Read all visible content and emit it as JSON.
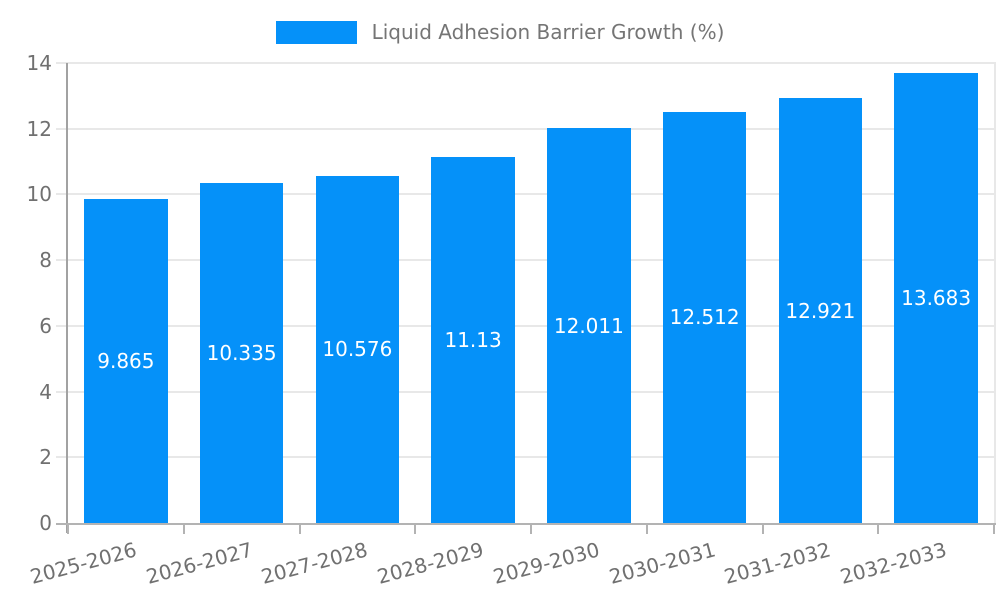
{
  "chart_data": {
    "type": "bar",
    "title": "Liquid Adhesion Barrier Growth (%)",
    "legend_entries": [
      "Liquid Adhesion Barrier Growth (%)"
    ],
    "legend_position": "top-center",
    "categories": [
      "2025-2026",
      "2026-2027",
      "2027-2028",
      "2028-2029",
      "2029-2030",
      "2030-2031",
      "2031-2032",
      "2032-2033"
    ],
    "values": [
      9.865,
      10.335,
      10.576,
      11.13,
      12.011,
      12.512,
      12.921,
      13.683
    ],
    "value_labels": [
      "9.865",
      "10.335",
      "10.576",
      "11.13",
      "12.011",
      "12.512",
      "12.921",
      "13.683"
    ],
    "xlabel": "",
    "ylabel": "",
    "ylim": [
      0,
      14
    ],
    "yticks": [
      0,
      2,
      4,
      6,
      8,
      10,
      12,
      14
    ],
    "grid": true,
    "x_label_rotation_deg": -15,
    "colors": {
      "bar": "#0591f9",
      "grid": "#e8e8e8",
      "axis_y": "#a2a2a2",
      "axis_x": "#b3b3b3",
      "text": "#707070",
      "legend_text": "#757575",
      "value_text": "#ffffff"
    }
  }
}
